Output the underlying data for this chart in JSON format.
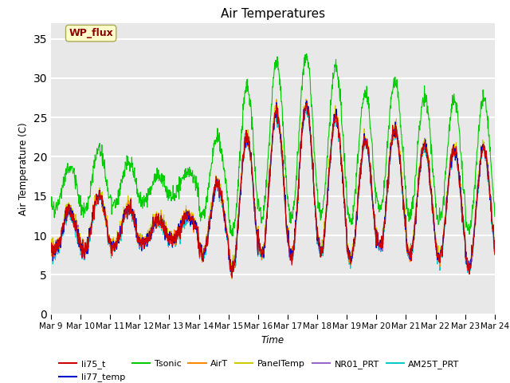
{
  "title": "Air Temperatures",
  "xlabel": "Time",
  "ylabel": "Air Temperature (C)",
  "ylim": [
    0,
    37
  ],
  "yticks": [
    0,
    5,
    10,
    15,
    20,
    25,
    30,
    35
  ],
  "date_labels": [
    "Mar 9",
    "Mar 10",
    "Mar 11",
    "Mar 12",
    "Mar 13",
    "Mar 14",
    "Mar 15",
    "Mar 16",
    "Mar 17",
    "Mar 18",
    "Mar 19",
    "Mar 20",
    "Mar 21",
    "Mar 22",
    "Mar 23",
    "Mar 24"
  ],
  "series": {
    "li75_t": {
      "color": "#cc0000",
      "lw": 0.8,
      "zorder": 5
    },
    "li77_temp": {
      "color": "#0000cc",
      "lw": 0.8,
      "zorder": 5
    },
    "Tsonic": {
      "color": "#00cc00",
      "lw": 0.8,
      "zorder": 3
    },
    "AirT": {
      "color": "#ff8800",
      "lw": 0.8,
      "zorder": 5
    },
    "PanelTemp": {
      "color": "#cccc00",
      "lw": 0.8,
      "zorder": 5
    },
    "NR01_PRT": {
      "color": "#9966cc",
      "lw": 0.8,
      "zorder": 5
    },
    "AM25T_PRT": {
      "color": "#00cccc",
      "lw": 0.8,
      "zorder": 4
    }
  },
  "annotation_text": "WP_flux",
  "annotation_color": "#8B0000",
  "annotation_bgcolor": "#ffffcc",
  "annotation_edgecolor": "#aaaa55",
  "plot_bgcolor": "#e8e8e8",
  "grid_color": "white",
  "figsize": [
    6.4,
    4.8
  ],
  "dpi": 100
}
